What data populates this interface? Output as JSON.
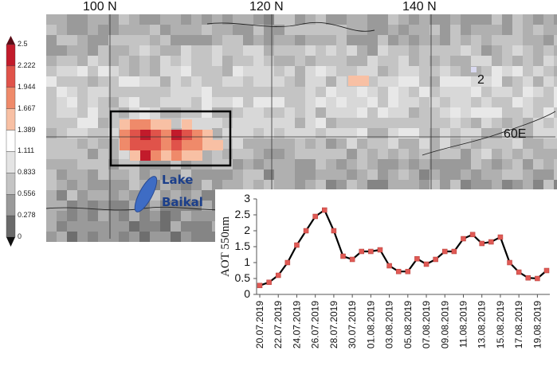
{
  "map": {
    "longitude_labels": [
      "100 N",
      "120 N",
      "140 N"
    ],
    "latitude_label": "60E",
    "region_marker": "2",
    "lake_label_line1": "Lake",
    "lake_label_line2": "Baikal",
    "colors": {
      "lake": "#3e6cc4",
      "box": "#000000"
    }
  },
  "colorbar": {
    "ticks": [
      "2.5",
      "2.222",
      "1.944",
      "1.667",
      "1.389",
      "1.111",
      "0.833",
      "0.556",
      "0.278",
      "0"
    ],
    "colors": [
      "#c21b2b",
      "#e0534a",
      "#ef8a6a",
      "#f8c0a4",
      "#ffffff",
      "#e4e4e4",
      "#c4c4c4",
      "#9a9a9a",
      "#6a6a6a"
    ],
    "arrow_color": "#5a0c16"
  },
  "chart_data": {
    "type": "line",
    "ylabel": "AOT 550nm",
    "ylim": [
      0,
      3
    ],
    "yticks": [
      "0",
      "0.5",
      "1",
      "1.5",
      "2",
      "2.5",
      "3"
    ],
    "xtick_labels": [
      "20.07.2019",
      "22.07.2019",
      "24.07.2019",
      "26.07.2019",
      "28.07.2019",
      "30.07.2019",
      "01.08.2019",
      "03.08.2019",
      "05.08.2019",
      "07.08.2019",
      "09.08.2019",
      "11.08.2019",
      "13.08.2019",
      "15.08.2019",
      "17.08.2019",
      "19.08.2019"
    ],
    "x": [
      "20.07.2019",
      "21.07.2019",
      "22.07.2019",
      "23.07.2019",
      "24.07.2019",
      "25.07.2019",
      "26.07.2019",
      "27.07.2019",
      "28.07.2019",
      "29.07.2019",
      "30.07.2019",
      "31.07.2019",
      "01.08.2019",
      "02.08.2019",
      "03.08.2019",
      "04.08.2019",
      "05.08.2019",
      "06.08.2019",
      "07.08.2019",
      "08.08.2019",
      "09.08.2019",
      "10.08.2019",
      "11.08.2019",
      "12.08.2019",
      "13.08.2019",
      "14.08.2019",
      "15.08.2019",
      "16.08.2019",
      "17.08.2019",
      "18.08.2019",
      "19.08.2019",
      "20.08.2019"
    ],
    "series": [
      {
        "values": [
          0.28,
          0.38,
          0.6,
          1.0,
          1.55,
          2.0,
          2.45,
          2.65,
          2.0,
          1.2,
          1.1,
          1.35,
          1.35,
          1.4,
          0.9,
          0.72,
          0.72,
          1.12,
          0.95,
          1.1,
          1.35,
          1.35,
          1.75,
          1.88,
          1.6,
          1.65,
          1.8,
          1.0,
          0.7,
          0.52,
          0.5,
          0.75
        ],
        "line_color": "#000000",
        "marker_color": "#e05a55"
      }
    ]
  }
}
